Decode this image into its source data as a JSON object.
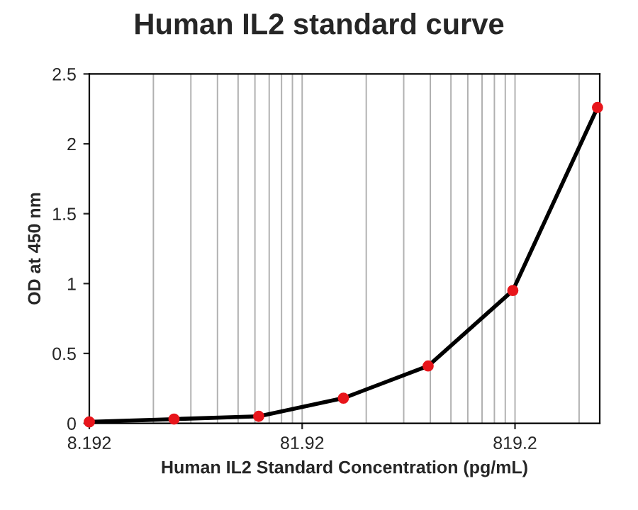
{
  "chart_data": {
    "type": "line",
    "title": "Human IL2 standard curve",
    "xlabel": "Human IL2 Standard Concentration (pg/mL)",
    "ylabel": "OD at 450 nm",
    "series": [
      {
        "type": "line",
        "color": "#000000",
        "marker": "none",
        "x": [
          8.192,
          20.48,
          51.2,
          128,
          320,
          800,
          2000
        ],
        "values": [
          0.01,
          0.03,
          0.05,
          0.18,
          0.41,
          0.95,
          2.26
        ]
      },
      {
        "type": "scatter",
        "color": "#e8151b",
        "marker": "circle",
        "x": [
          8.192,
          20.48,
          51.2,
          128,
          320,
          800,
          2000
        ],
        "values": [
          0.01,
          0.03,
          0.05,
          0.18,
          0.41,
          0.95,
          2.26
        ]
      }
    ],
    "log": "x",
    "xlim": [
      8.192,
      2048
    ],
    "xticks": [
      8.192,
      81.92,
      819.2
    ],
    "ylim": [
      0,
      2.5
    ],
    "yticks": [
      0,
      0.5,
      1,
      1.5,
      2,
      2.5
    ],
    "grid": "x",
    "legend": false
  }
}
